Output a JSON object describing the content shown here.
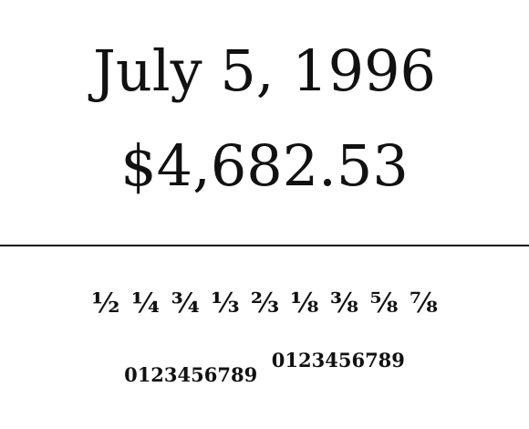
{
  "date_text": "July 5, 1996",
  "amount_text": "$4,682.53",
  "fractions_text": "½ ¼ ¾ ⅓ ⅔ ⅛ ⅜ ⅝ ⅞",
  "digits_oldstyle": "0123456789",
  "digits_superior": "0123456789",
  "colors": {
    "text": "#111111",
    "background": "#ffffff"
  }
}
